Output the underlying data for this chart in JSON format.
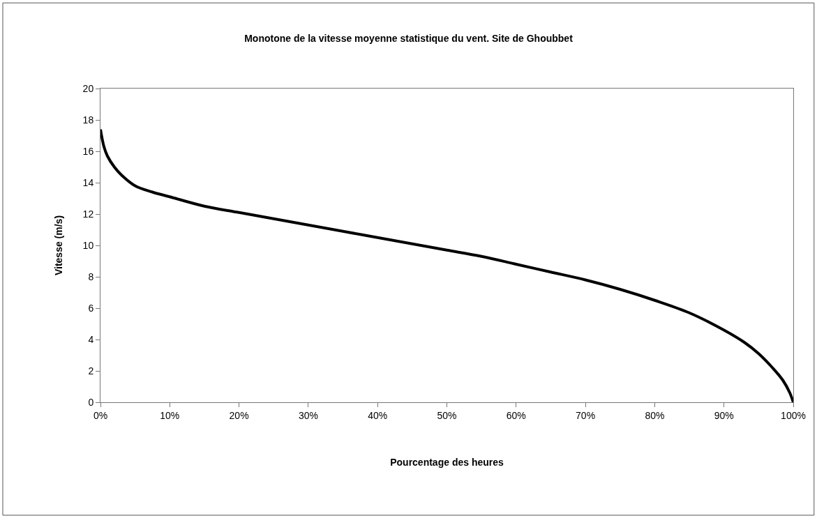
{
  "chart_data": {
    "type": "line",
    "title": "Monotone de la vitesse moyenne statistique du vent. Site de Ghoubbet",
    "xlabel": "Pourcentage des heures",
    "ylabel": "Vitesse (m/s)",
    "x": [
      0,
      0.5,
      1,
      2,
      3,
      5,
      7.5,
      10,
      15,
      20,
      25,
      30,
      35,
      40,
      45,
      50,
      55,
      60,
      65,
      70,
      75,
      80,
      85,
      90,
      93,
      95,
      97,
      98.5,
      99.5,
      100
    ],
    "series": [
      {
        "color": "#000000",
        "values": [
          17.4,
          16.3,
          15.7,
          15.0,
          14.5,
          13.8,
          13.4,
          13.1,
          12.5,
          12.1,
          11.7,
          11.3,
          10.9,
          10.5,
          10.1,
          9.7,
          9.3,
          8.8,
          8.3,
          7.8,
          7.2,
          6.5,
          5.7,
          4.6,
          3.8,
          3.1,
          2.2,
          1.4,
          0.6,
          0
        ]
      }
    ],
    "xlim": [
      0,
      100
    ],
    "xticks": [
      {
        "value": 0,
        "label": "0%"
      },
      {
        "value": 10,
        "label": "10%"
      },
      {
        "value": 20,
        "label": "20%"
      },
      {
        "value": 30,
        "label": "30%"
      },
      {
        "value": 40,
        "label": "40%"
      },
      {
        "value": 50,
        "label": "50%"
      },
      {
        "value": 60,
        "label": "60%"
      },
      {
        "value": 70,
        "label": "70%"
      },
      {
        "value": 80,
        "label": "80%"
      },
      {
        "value": 90,
        "label": "90%"
      },
      {
        "value": 100,
        "label": "100%"
      }
    ],
    "ylim": [
      0,
      20
    ],
    "yticks": [
      0,
      2,
      4,
      6,
      8,
      10,
      12,
      14,
      16,
      18,
      20
    ],
    "grid": false,
    "marker": "none",
    "line_style": "solid"
  }
}
